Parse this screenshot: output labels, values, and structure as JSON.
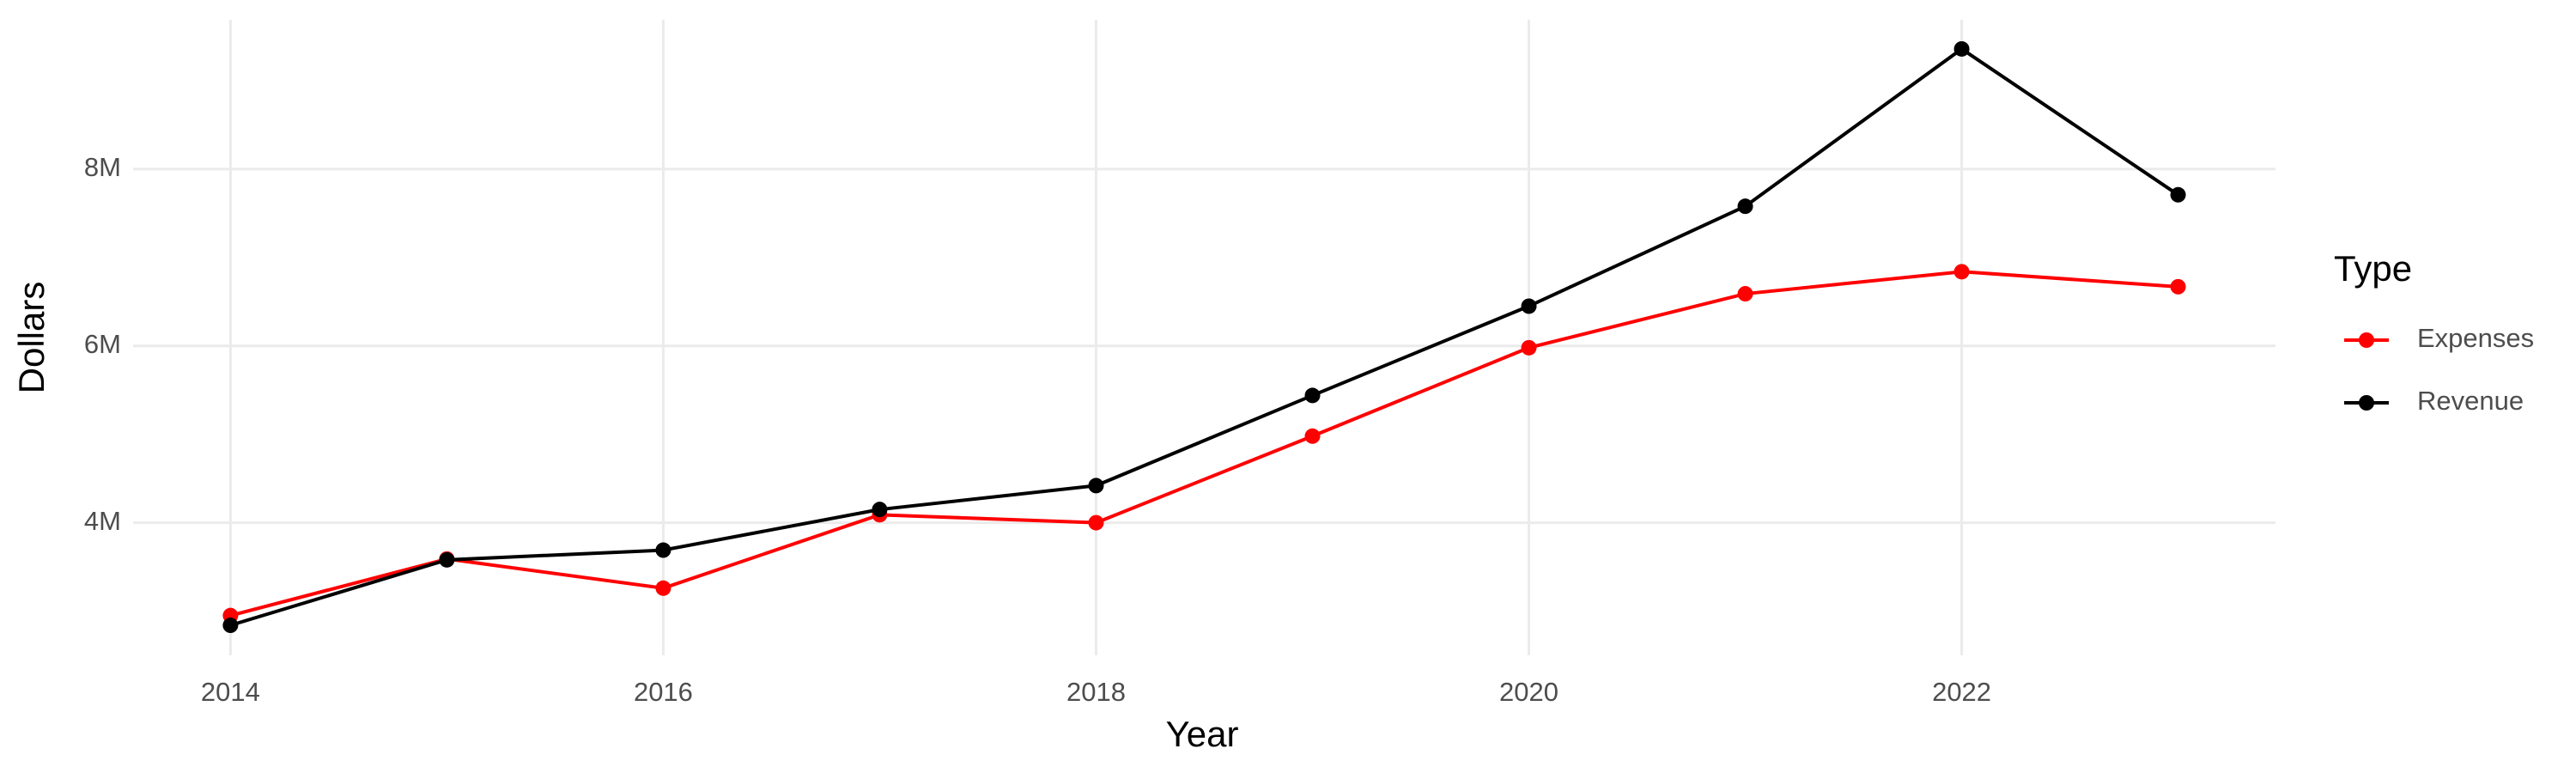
{
  "chart_data": {
    "type": "line",
    "x_label": "Year",
    "y_label": "Dollars",
    "legend_title": "Type",
    "legend": "right",
    "grid": true,
    "x": [
      2014,
      2015,
      2016,
      2017,
      2018,
      2019,
      2020,
      2021,
      2022,
      2023
    ],
    "series": [
      {
        "name": "Expenses",
        "color": "#ff0000",
        "values": [
          2950000,
          3590000,
          3260000,
          4090000,
          4000000,
          4980000,
          5980000,
          6590000,
          6840000,
          6670000
        ]
      },
      {
        "name": "Revenue",
        "color": "#000000",
        "values": [
          2840000,
          3580000,
          3690000,
          4150000,
          4420000,
          5440000,
          6450000,
          7580000,
          9360000,
          7710000
        ]
      }
    ],
    "xlim": [
      2013.55,
      2023.45
    ],
    "xticks": [
      2014,
      2016,
      2018,
      2020,
      2022
    ],
    "ylim": [
      2500000,
      9690000
    ],
    "yticks": [
      {
        "value": 4000000,
        "label": "4M"
      },
      {
        "value": 6000000,
        "label": "6M"
      },
      {
        "value": 8000000,
        "label": "8M"
      }
    ]
  }
}
